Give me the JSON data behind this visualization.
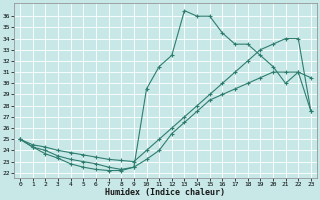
{
  "xlabel": "Humidex (Indice chaleur)",
  "bg_color": "#c8e8e8",
  "grid_color": "#b0d8d8",
  "line_color": "#2e7d6e",
  "xlim": [
    -0.5,
    23.5
  ],
  "ylim": [
    21.5,
    37.2
  ],
  "xticks": [
    0,
    1,
    2,
    3,
    4,
    5,
    6,
    7,
    8,
    9,
    10,
    11,
    12,
    13,
    14,
    15,
    16,
    17,
    18,
    19,
    20,
    21,
    22,
    23
  ],
  "yticks": [
    22,
    23,
    24,
    25,
    26,
    27,
    28,
    29,
    30,
    31,
    32,
    33,
    34,
    35,
    36
  ],
  "curve_dip_x": [
    0,
    1,
    2,
    3,
    4,
    5,
    6,
    7,
    8,
    9,
    10,
    11,
    12,
    13,
    14,
    15,
    16,
    17,
    18,
    19,
    20,
    21,
    22,
    23
  ],
  "curve_dip_y": [
    25.0,
    24.3,
    23.7,
    23.3,
    22.8,
    22.5,
    22.3,
    22.2,
    22.2,
    22.5,
    23.2,
    24.0,
    25.5,
    26.5,
    27.5,
    28.5,
    29.0,
    29.5,
    30.0,
    30.5,
    31.0,
    31.0,
    31.0,
    27.5
  ],
  "curve_spike_x": [
    0,
    1,
    2,
    3,
    4,
    5,
    6,
    7,
    8,
    9,
    10,
    11,
    12,
    13,
    14,
    15,
    16,
    17,
    18,
    19,
    20,
    21,
    22,
    23
  ],
  "curve_spike_y": [
    25.0,
    24.3,
    24.0,
    23.5,
    23.2,
    23.0,
    22.8,
    22.5,
    22.3,
    22.5,
    29.5,
    31.5,
    32.5,
    36.5,
    36.0,
    36.0,
    34.5,
    33.5,
    33.5,
    32.5,
    31.5,
    30.0,
    31.0,
    30.5
  ],
  "curve_diag_x": [
    0,
    1,
    2,
    3,
    4,
    5,
    6,
    7,
    8,
    9,
    10,
    11,
    12,
    13,
    14,
    15,
    16,
    17,
    18,
    19,
    20,
    21,
    22,
    23
  ],
  "curve_diag_y": [
    25.0,
    24.5,
    24.3,
    24.0,
    23.8,
    23.6,
    23.4,
    23.2,
    23.1,
    23.0,
    24.0,
    25.0,
    26.0,
    27.0,
    28.0,
    29.0,
    30.0,
    31.0,
    32.0,
    33.0,
    33.5,
    34.0,
    34.0,
    27.5
  ]
}
